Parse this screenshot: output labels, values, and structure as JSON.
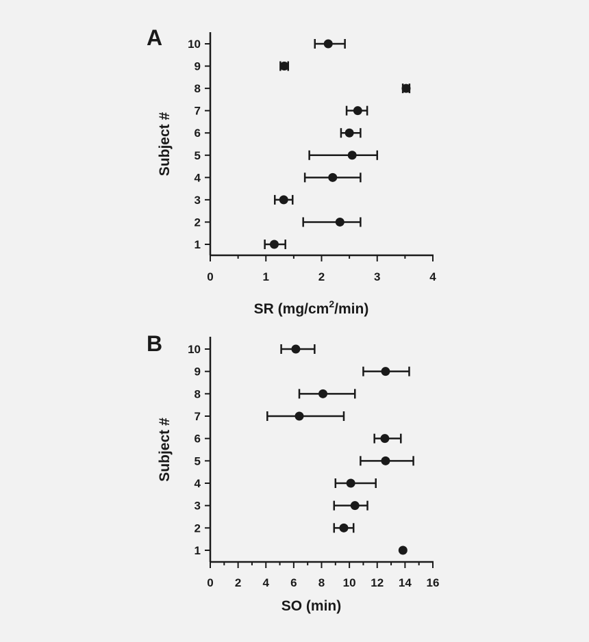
{
  "chart_data": [
    {
      "type": "scatter",
      "panel_label": "A",
      "ylabel": "Subject #",
      "xlabel_main": "SR (mg/cm",
      "xlabel_sup": "2",
      "xlabel_tail": "/min)",
      "xlim": [
        0,
        4
      ],
      "ylim": [
        0.5,
        10.5
      ],
      "xticks": [
        0,
        1,
        2,
        3,
        4
      ],
      "xticklabels": [
        "0",
        "1",
        "2",
        "3",
        "4"
      ],
      "minor_xticks": [
        0.5,
        1.5,
        2.5,
        3.5
      ],
      "yticks": [
        1,
        2,
        3,
        4,
        5,
        6,
        7,
        8,
        9,
        10
      ],
      "yticklabels": [
        "1",
        "2",
        "3",
        "4",
        "5",
        "6",
        "7",
        "8",
        "9",
        "10"
      ],
      "points": [
        {
          "subject": 1,
          "x": 1.15,
          "lo": 0.98,
          "hi": 1.35
        },
        {
          "subject": 2,
          "x": 2.33,
          "lo": 1.67,
          "hi": 2.7
        },
        {
          "subject": 3,
          "x": 1.32,
          "lo": 1.16,
          "hi": 1.48
        },
        {
          "subject": 4,
          "x": 2.2,
          "lo": 1.7,
          "hi": 2.7
        },
        {
          "subject": 5,
          "x": 2.55,
          "lo": 1.78,
          "hi": 3.0
        },
        {
          "subject": 6,
          "x": 2.5,
          "lo": 2.35,
          "hi": 2.7
        },
        {
          "subject": 7,
          "x": 2.65,
          "lo": 2.45,
          "hi": 2.82
        },
        {
          "subject": 8,
          "x": 3.52,
          "lo": 3.46,
          "hi": 3.58
        },
        {
          "subject": 9,
          "x": 1.33,
          "lo": 1.26,
          "hi": 1.4
        },
        {
          "subject": 10,
          "x": 2.12,
          "lo": 1.88,
          "hi": 2.42
        }
      ]
    },
    {
      "type": "scatter",
      "panel_label": "B",
      "ylabel": "Subject #",
      "xlabel_main": "SO (min)",
      "xlabel_sup": "",
      "xlabel_tail": "",
      "xlim": [
        0,
        16
      ],
      "ylim": [
        0.5,
        10.5
      ],
      "xticks": [
        0,
        2,
        4,
        6,
        8,
        10,
        12,
        14,
        16
      ],
      "xticklabels": [
        "0",
        "2",
        "4",
        "6",
        "8",
        "10",
        "12",
        "14",
        "16"
      ],
      "minor_xticks": [
        1,
        3,
        5,
        7,
        9,
        11,
        13,
        15
      ],
      "yticks": [
        1,
        2,
        3,
        4,
        5,
        6,
        7,
        8,
        9,
        10
      ],
      "yticklabels": [
        "1",
        "2",
        "3",
        "4",
        "5",
        "6",
        "7",
        "8",
        "9",
        "10"
      ],
      "points": [
        {
          "subject": 1,
          "x": 13.85,
          "lo": 13.85,
          "hi": 13.85
        },
        {
          "subject": 2,
          "x": 9.6,
          "lo": 8.9,
          "hi": 10.3
        },
        {
          "subject": 3,
          "x": 10.4,
          "lo": 8.9,
          "hi": 11.3
        },
        {
          "subject": 4,
          "x": 10.1,
          "lo": 9.0,
          "hi": 11.9
        },
        {
          "subject": 5,
          "x": 12.6,
          "lo": 10.8,
          "hi": 14.6
        },
        {
          "subject": 6,
          "x": 12.55,
          "lo": 11.8,
          "hi": 13.7
        },
        {
          "subject": 7,
          "x": 6.4,
          "lo": 4.1,
          "hi": 9.6
        },
        {
          "subject": 8,
          "x": 8.1,
          "lo": 6.4,
          "hi": 10.4
        },
        {
          "subject": 9,
          "x": 12.6,
          "lo": 11.0,
          "hi": 14.3
        },
        {
          "subject": 10,
          "x": 6.15,
          "lo": 5.1,
          "hi": 7.5
        }
      ]
    }
  ]
}
